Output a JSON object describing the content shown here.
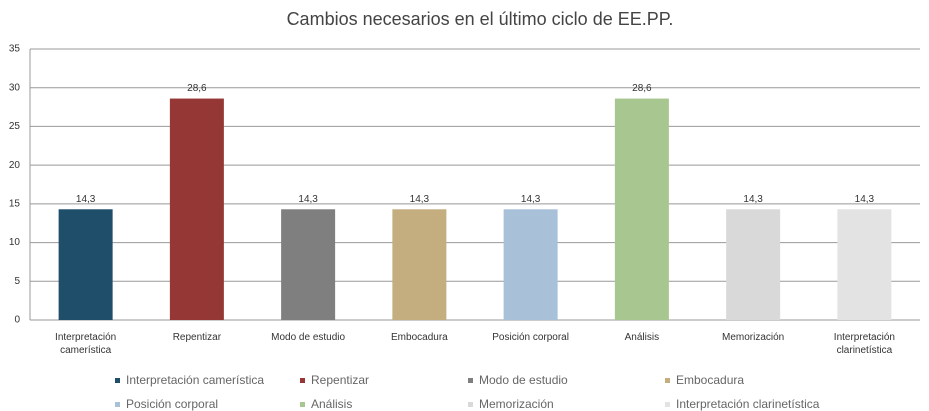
{
  "chart_data": {
    "type": "bar",
    "title": "Cambios necesarios en el último ciclo de EE.PP.",
    "categories": [
      "Interpretación camerística",
      "Repentizar",
      "Modo de estudio",
      "Embocadura",
      "Posición corporal",
      "Análisis",
      "Memorización",
      "Interpretación clarinetística"
    ],
    "values": [
      14.3,
      28.6,
      14.3,
      14.3,
      14.3,
      28.6,
      14.3,
      14.3
    ],
    "value_labels": [
      "14,3",
      "28,6",
      "14,3",
      "14,3",
      "14,3",
      "28,6",
      "14,3",
      "14,3"
    ],
    "colors": [
      "#1f4e6b",
      "#953735",
      "#7f7f7f",
      "#c4ae80",
      "#a9c0d9",
      "#a8c68f",
      "#d9d9d9",
      "#e3e3e3"
    ],
    "ylim": [
      0,
      35
    ],
    "yticks": [
      0,
      5,
      10,
      15,
      20,
      25,
      30,
      35
    ],
    "grid": true,
    "legend": "bottom"
  }
}
